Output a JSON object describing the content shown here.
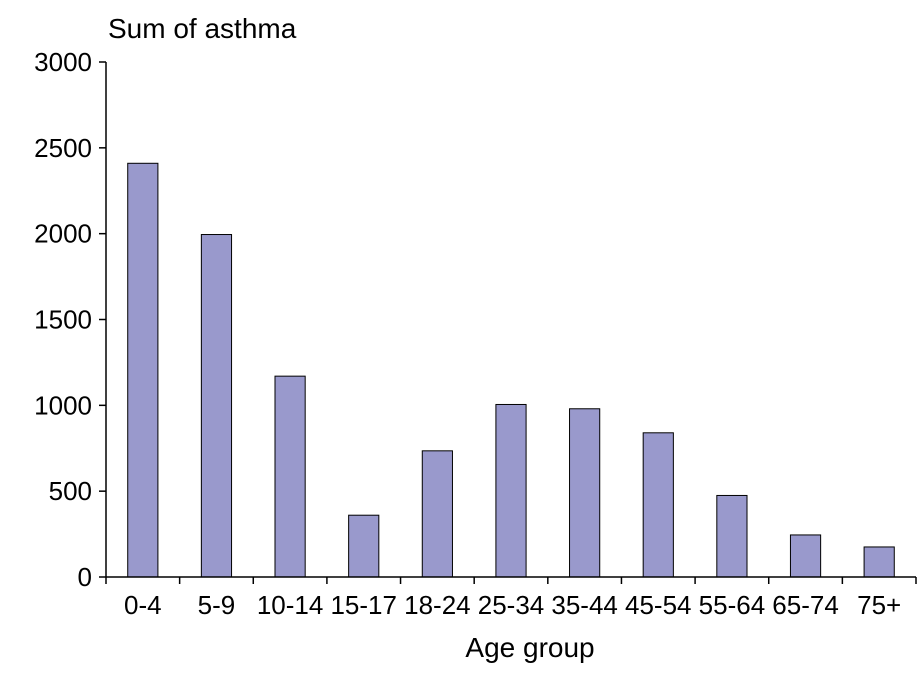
{
  "chart_data": {
    "type": "bar",
    "title": "Sum of asthma",
    "xlabel": "Age group",
    "ylabel": "",
    "categories": [
      "0-4",
      "5-9",
      "10-14",
      "15-17",
      "18-24",
      "25-34",
      "35-44",
      "45-54",
      "55-64",
      "65-74",
      "75+"
    ],
    "values": [
      2410,
      1995,
      1170,
      360,
      735,
      1005,
      980,
      840,
      475,
      245,
      175
    ],
    "ylim": [
      0,
      3000
    ],
    "yticks": [
      0,
      500,
      1000,
      1500,
      2000,
      2500,
      3000
    ],
    "grid": false,
    "legend": "none",
    "colors": {
      "bar_fill": "#9999cc",
      "bar_stroke": "#000000",
      "axis": "#000000"
    }
  }
}
